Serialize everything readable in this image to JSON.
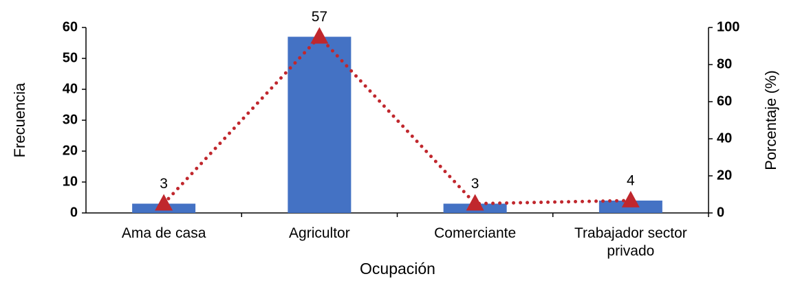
{
  "chart_data": {
    "type": "bar",
    "categories": [
      "Ama de casa",
      "Agricultor",
      "Comerciante",
      "Trabajador sector privado"
    ],
    "series": [
      {
        "type": "bar",
        "color": "#4472c4",
        "values": [
          3,
          57,
          3,
          4
        ]
      },
      {
        "type": "line",
        "axis": "y2",
        "color": "#c0272d",
        "linestyle": "dotted",
        "marker": "triangle",
        "values": [
          5,
          95,
          5,
          6.7
        ]
      }
    ],
    "ylabel": "Frecuencia",
    "y2label": "Porcentaje (%)",
    "xlabel": "Ocupación",
    "ylim": [
      0,
      60
    ],
    "yticks": [
      0,
      10,
      20,
      30,
      40,
      50,
      60
    ],
    "y2lim": [
      0,
      100
    ],
    "y2ticks": [
      0,
      20,
      40,
      60,
      80,
      100
    ]
  }
}
